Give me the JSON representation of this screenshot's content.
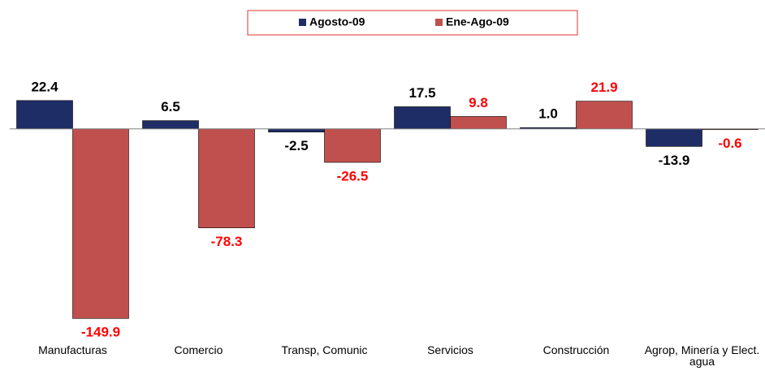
{
  "chart_data": {
    "type": "bar",
    "categories": [
      "Manufacturas",
      "Comercio",
      "Transp, Comunic",
      "Servicios",
      "Construcción",
      "Agrop, Minería y Elect. agua"
    ],
    "series": [
      {
        "name": "Agosto-09",
        "color": "#1f2d66",
        "label_color": "#000000",
        "values": [
          22.4,
          6.5,
          -2.5,
          17.5,
          1.0,
          -13.9
        ],
        "value_labels": [
          "22.4",
          "6.5",
          "-2.5",
          "17.5",
          "1.0",
          "-13.9"
        ]
      },
      {
        "name": "Ene-Ago-09",
        "color": "#c0504d",
        "label_color": "#ff0000",
        "values": [
          -149.9,
          -78.3,
          -26.5,
          9.8,
          21.9,
          -0.6
        ],
        "value_labels": [
          "-149.9",
          "-78.3",
          "-26.5",
          "9.8",
          "21.9",
          "-0.6"
        ]
      }
    ],
    "ylim": [
      -160,
      30
    ],
    "legend": "top"
  }
}
